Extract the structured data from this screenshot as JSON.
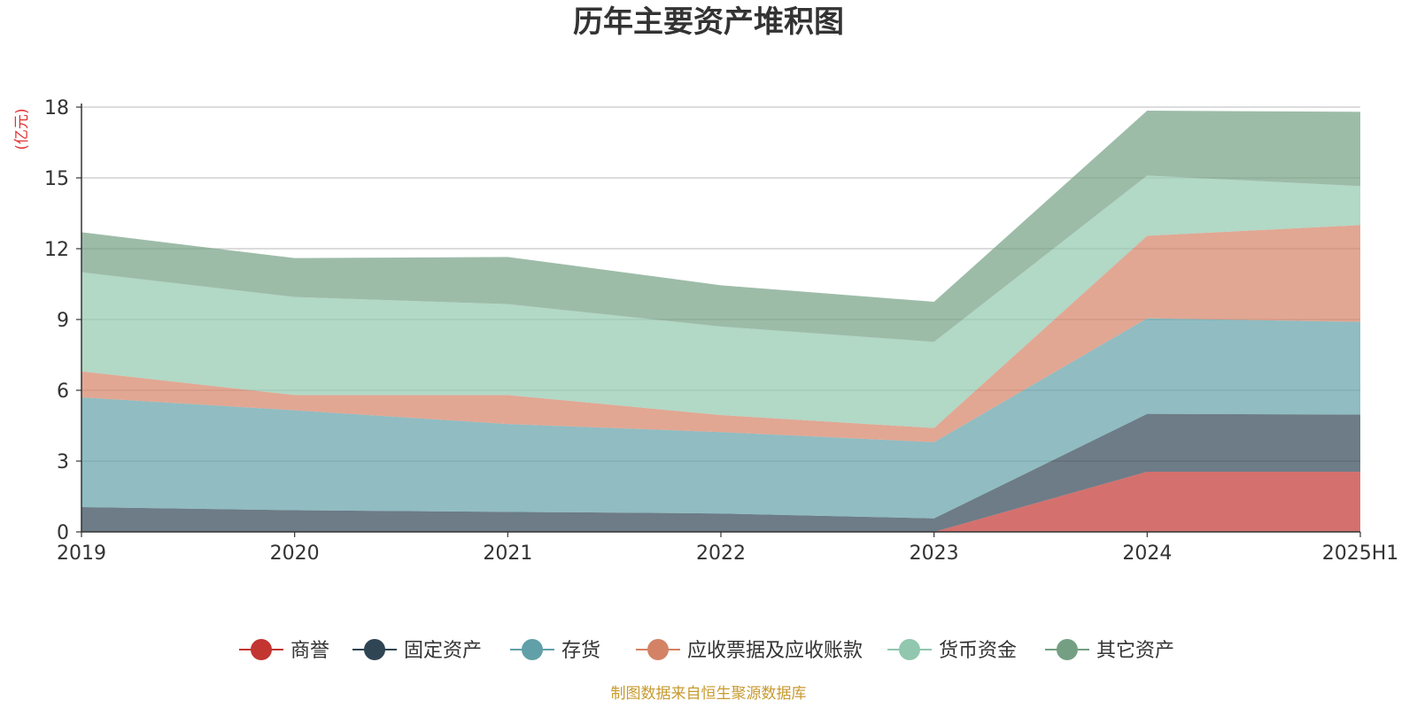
{
  "chart_data": {
    "type": "area",
    "stacked": true,
    "title": "历年主要资产堆积图",
    "unit": "(亿元)",
    "source": "制图数据来自恒生聚源数据库",
    "categories": [
      "2019",
      "2020",
      "2021",
      "2022",
      "2023",
      "2024",
      "2025H1"
    ],
    "ylim": [
      0,
      18
    ],
    "yticks": [
      "0",
      "3",
      "6",
      "9",
      "12",
      "15",
      "18"
    ],
    "grid": true,
    "legend_position": "bottom",
    "series": [
      {
        "name": "商誉",
        "color": "#c23531",
        "values": [
          0,
          0,
          0,
          0,
          0,
          2.55,
          2.55
        ]
      },
      {
        "name": "固定资产",
        "color": "#2f4554",
        "values": [
          1.05,
          0.92,
          0.85,
          0.78,
          0.57,
          2.45,
          2.42
        ]
      },
      {
        "name": "存货",
        "color": "#61a0a8",
        "values": [
          4.65,
          4.23,
          3.72,
          3.45,
          3.23,
          4.05,
          3.93
        ]
      },
      {
        "name": "应收票据及应收账款",
        "color": "#d48265",
        "values": [
          1.1,
          0.65,
          1.23,
          0.72,
          0.6,
          3.5,
          4.1
        ]
      },
      {
        "name": "货币资金",
        "color": "#91c7ae",
        "values": [
          4.2,
          4.15,
          3.85,
          3.75,
          3.65,
          2.55,
          1.65
        ]
      },
      {
        "name": "其它资产",
        "color": "#749f83",
        "values": [
          1.7,
          1.65,
          2.0,
          1.75,
          1.7,
          2.75,
          3.15
        ]
      }
    ]
  }
}
